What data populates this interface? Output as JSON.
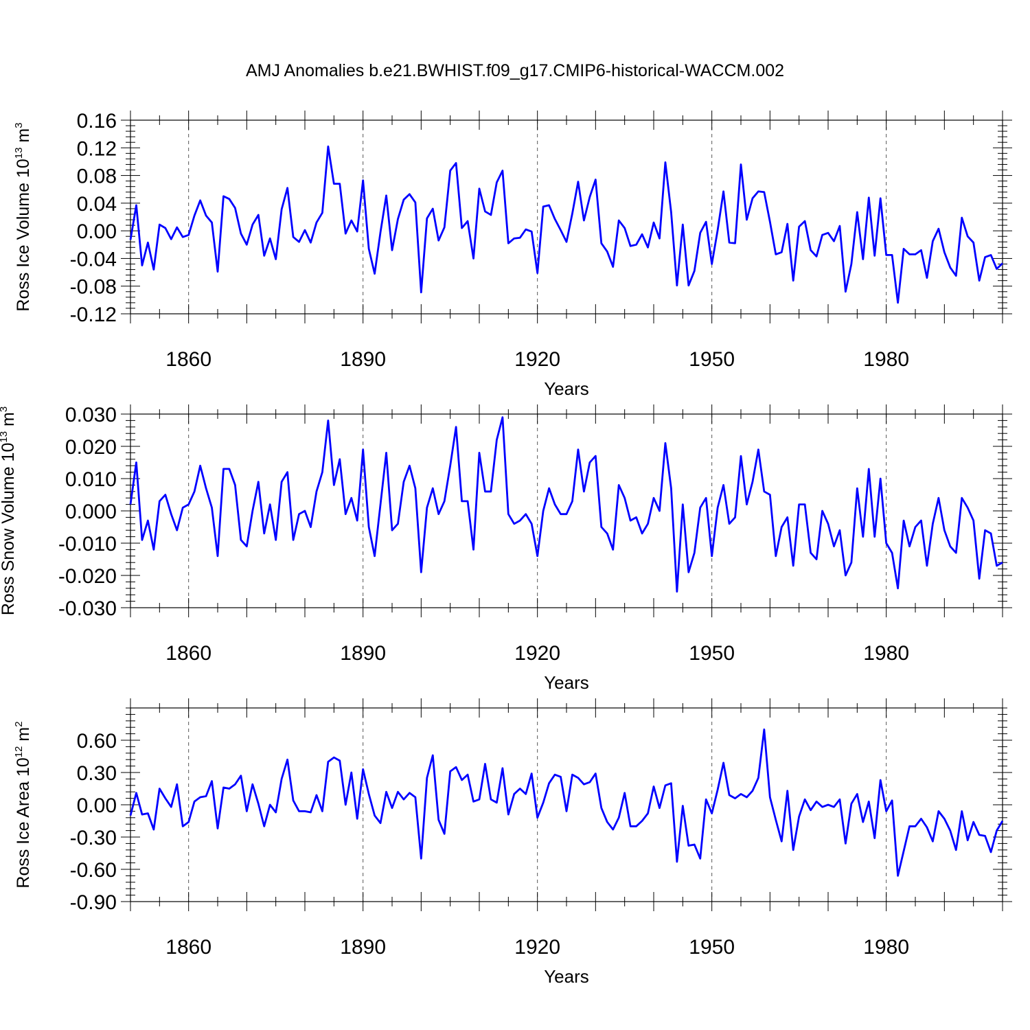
{
  "figure": {
    "title": "AMJ Anomalies b.e21.BWHIST.f09_g17.CMIP6-historical-WACCM.002",
    "line_color": "#0000ff"
  },
  "chart_data": [
    {
      "type": "line",
      "id": "ice-volume",
      "ylabel": "Ross Ice Volume 10",
      "ylabel_exp": "13",
      "ylabel_unit": " m",
      "ylabel_unit_exp": "3",
      "xlabel": "Years",
      "xlim": [
        1850,
        2000
      ],
      "ylim": [
        -0.12,
        0.16
      ],
      "x_ticks": [
        1860,
        1890,
        1920,
        1950,
        1980
      ],
      "y_ticks": [
        -0.12,
        -0.08,
        -0.04,
        0.0,
        0.04,
        0.08,
        0.12,
        0.16
      ],
      "y_tick_labels": [
        "-0.12",
        "-0.08",
        "-0.04",
        "0.00",
        "0.04",
        "0.08",
        "0.12",
        "0.16"
      ],
      "x_start": 1850,
      "values": [
        -0.013,
        0.037,
        -0.05,
        -0.017,
        -0.056,
        0.009,
        0.004,
        -0.012,
        0.005,
        -0.009,
        -0.006,
        0.022,
        0.044,
        0.022,
        0.012,
        -0.059,
        0.05,
        0.046,
        0.033,
        -0.004,
        -0.02,
        0.009,
        0.023,
        -0.036,
        -0.011,
        -0.041,
        0.031,
        0.062,
        -0.009,
        -0.016,
        0.001,
        -0.017,
        0.012,
        0.026,
        0.122,
        0.068,
        0.068,
        -0.004,
        0.015,
        -0.001,
        0.073,
        -0.026,
        -0.062,
        -0.002,
        0.051,
        -0.028,
        0.017,
        0.045,
        0.053,
        0.041,
        -0.089,
        0.018,
        0.032,
        -0.014,
        0.005,
        0.087,
        0.098,
        0.004,
        0.014,
        -0.04,
        0.061,
        0.028,
        0.023,
        0.07,
        0.087,
        -0.018,
        -0.011,
        -0.01,
        0.002,
        -0.001,
        -0.061,
        0.035,
        0.037,
        0.017,
        0.001,
        -0.016,
        0.025,
        0.071,
        0.015,
        0.049,
        0.074,
        -0.018,
        -0.03,
        -0.052,
        0.015,
        0.004,
        -0.022,
        -0.02,
        -0.005,
        -0.024,
        0.012,
        -0.011,
        0.099,
        0.027,
        -0.079,
        0.009,
        -0.079,
        -0.058,
        -0.003,
        0.013,
        -0.048,
        0.001,
        0.057,
        -0.017,
        -0.018,
        0.096,
        0.016,
        0.047,
        0.057,
        0.056,
        0.013,
        -0.034,
        -0.031,
        0.01,
        -0.072,
        0.006,
        0.014,
        -0.028,
        -0.037,
        -0.006,
        -0.003,
        -0.015,
        0.007,
        -0.088,
        -0.048,
        0.027,
        -0.041,
        0.048,
        -0.036,
        0.047,
        -0.035,
        -0.035,
        -0.104,
        -0.026,
        -0.034,
        -0.034,
        -0.028,
        -0.068,
        -0.015,
        0.003,
        -0.031,
        -0.053,
        -0.065,
        0.019,
        -0.008,
        -0.017,
        -0.072,
        -0.038,
        -0.035,
        -0.055,
        -0.047
      ]
    },
    {
      "type": "line",
      "id": "snow-volume",
      "ylabel": "Ross Snow Volume 10",
      "ylabel_exp": "13",
      "ylabel_unit": " m",
      "ylabel_unit_exp": "3",
      "xlabel": "Years",
      "xlim": [
        1850,
        2000
      ],
      "ylim": [
        -0.03,
        0.03
      ],
      "x_ticks": [
        1860,
        1890,
        1920,
        1950,
        1980
      ],
      "y_ticks": [
        -0.03,
        -0.02,
        -0.01,
        0.0,
        0.01,
        0.02,
        0.03
      ],
      "y_tick_labels": [
        "-0.030",
        "-0.020",
        "-0.010",
        "0.000",
        "0.010",
        "0.020",
        "0.030"
      ],
      "x_start": 1850,
      "values": [
        0.002,
        0.015,
        -0.009,
        -0.003,
        -0.012,
        0.003,
        0.005,
        -0.001,
        -0.006,
        0.001,
        0.002,
        0.006,
        0.014,
        0.007,
        0.001,
        -0.014,
        0.013,
        0.013,
        0.008,
        -0.009,
        -0.011,
        0.0,
        0.009,
        -0.007,
        0.002,
        -0.009,
        0.009,
        0.012,
        -0.009,
        -0.001,
        0.0,
        -0.005,
        0.006,
        0.012,
        0.028,
        0.008,
        0.016,
        -0.001,
        0.004,
        -0.003,
        0.019,
        -0.005,
        -0.014,
        0.002,
        0.018,
        -0.006,
        -0.004,
        0.009,
        0.014,
        0.007,
        -0.019,
        0.001,
        0.007,
        -0.001,
        0.003,
        0.014,
        0.026,
        0.003,
        0.003,
        -0.012,
        0.018,
        0.006,
        0.006,
        0.022,
        0.029,
        -0.001,
        -0.004,
        -0.003,
        -0.001,
        -0.004,
        -0.014,
        0.0,
        0.007,
        0.002,
        -0.001,
        -0.001,
        0.003,
        0.019,
        0.006,
        0.015,
        0.017,
        -0.005,
        -0.007,
        -0.012,
        0.008,
        0.004,
        -0.003,
        -0.002,
        -0.007,
        -0.004,
        0.004,
        0.0,
        0.021,
        0.007,
        -0.025,
        0.002,
        -0.019,
        -0.013,
        0.001,
        0.004,
        -0.014,
        0.001,
        0.008,
        -0.004,
        -0.002,
        0.017,
        0.002,
        0.009,
        0.019,
        0.006,
        0.005,
        -0.014,
        -0.005,
        -0.002,
        -0.017,
        0.002,
        0.002,
        -0.013,
        -0.015,
        0.0,
        -0.004,
        -0.011,
        -0.006,
        -0.02,
        -0.016,
        0.007,
        -0.008,
        0.013,
        -0.008,
        0.01,
        -0.01,
        -0.013,
        -0.024,
        -0.003,
        -0.011,
        -0.005,
        -0.003,
        -0.017,
        -0.004,
        0.004,
        -0.006,
        -0.011,
        -0.013,
        0.004,
        0.001,
        -0.003,
        -0.021,
        -0.006,
        -0.007,
        -0.017,
        -0.016
      ]
    },
    {
      "type": "line",
      "id": "ice-area",
      "ylabel": "Ross Ice Area 10",
      "ylabel_exp": "12",
      "ylabel_unit": " m",
      "ylabel_unit_exp": "2",
      "xlabel": "Years",
      "xlim": [
        1850,
        2000
      ],
      "ylim": [
        -0.9,
        0.9
      ],
      "x_ticks": [
        1860,
        1890,
        1920,
        1950,
        1980
      ],
      "y_ticks": [
        -0.9,
        -0.6,
        -0.3,
        0.0,
        0.3,
        0.6
      ],
      "y_tick_labels": [
        "-0.90",
        "-0.60",
        "-0.30",
        "0.00",
        "0.30",
        "0.60"
      ],
      "x_start": 1850,
      "values": [
        -0.1,
        0.11,
        -0.09,
        -0.08,
        -0.23,
        0.15,
        0.06,
        -0.02,
        0.19,
        -0.2,
        -0.16,
        0.03,
        0.07,
        0.08,
        0.22,
        -0.22,
        0.16,
        0.15,
        0.19,
        0.27,
        -0.06,
        0.19,
        0.01,
        -0.2,
        0.0,
        -0.07,
        0.24,
        0.42,
        0.04,
        -0.06,
        -0.06,
        -0.07,
        0.09,
        -0.06,
        0.4,
        0.44,
        0.41,
        0.0,
        0.3,
        -0.13,
        0.33,
        0.1,
        -0.1,
        -0.17,
        0.12,
        -0.03,
        0.12,
        0.05,
        0.11,
        0.07,
        -0.5,
        0.25,
        0.46,
        -0.14,
        -0.27,
        0.31,
        0.35,
        0.23,
        0.28,
        0.03,
        0.05,
        0.38,
        0.05,
        0.02,
        0.34,
        -0.09,
        0.1,
        0.15,
        0.1,
        0.29,
        -0.12,
        0.02,
        0.2,
        0.28,
        0.26,
        -0.06,
        0.28,
        0.25,
        0.19,
        0.21,
        0.29,
        -0.03,
        -0.16,
        -0.23,
        -0.12,
        0.11,
        -0.2,
        -0.2,
        -0.15,
        -0.08,
        0.17,
        -0.03,
        0.18,
        0.2,
        -0.53,
        -0.01,
        -0.38,
        -0.37,
        -0.5,
        0.05,
        -0.08,
        0.14,
        0.39,
        0.09,
        0.06,
        0.1,
        0.07,
        0.13,
        0.25,
        0.7,
        0.07,
        -0.14,
        -0.34,
        0.13,
        -0.42,
        -0.11,
        0.05,
        -0.05,
        0.03,
        -0.02,
        0.0,
        -0.02,
        0.05,
        -0.36,
        0.01,
        0.1,
        -0.16,
        0.03,
        -0.31,
        0.23,
        -0.06,
        0.04,
        -0.66,
        -0.43,
        -0.2,
        -0.2,
        -0.13,
        -0.21,
        -0.34,
        -0.06,
        -0.13,
        -0.24,
        -0.42,
        -0.06,
        -0.33,
        -0.16,
        -0.28,
        -0.29,
        -0.44,
        -0.24,
        -0.15
      ]
    }
  ]
}
